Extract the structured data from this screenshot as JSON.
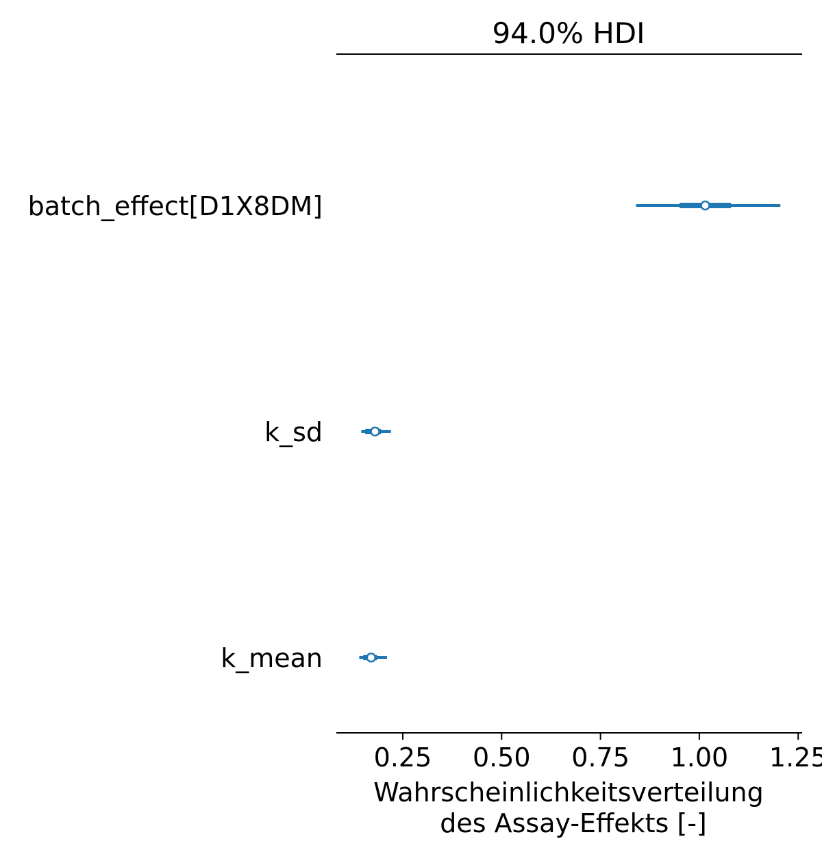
{
  "chart_data": {
    "type": "forest",
    "title": "94.0% HDI",
    "xlabel_lines": [
      "Wahrscheinlichkeitsverteilung",
      "des Assay-Effekts [-]"
    ],
    "xlim": [
      0.082,
      1.26
    ],
    "xticks": [
      0.25,
      0.5,
      0.75,
      1.0,
      1.25
    ],
    "xtick_labels": [
      "0.25",
      "0.50",
      "0.75",
      "1.00",
      "1.25"
    ],
    "grid": false,
    "colors": {
      "series": "#1f77b4"
    },
    "parameters": [
      {
        "label": "batch_effect[D1X8DM]",
        "hdi_low": 0.84,
        "q1": 0.95,
        "median": 1.015,
        "q3": 1.08,
        "hdi_high": 1.205
      },
      {
        "label": "k_sd",
        "hdi_low": 0.145,
        "q1": 0.155,
        "median": 0.18,
        "q3": 0.195,
        "hdi_high": 0.22
      },
      {
        "label": "k_mean",
        "hdi_low": 0.14,
        "q1": 0.15,
        "median": 0.17,
        "q3": 0.185,
        "hdi_high": 0.21
      }
    ]
  }
}
